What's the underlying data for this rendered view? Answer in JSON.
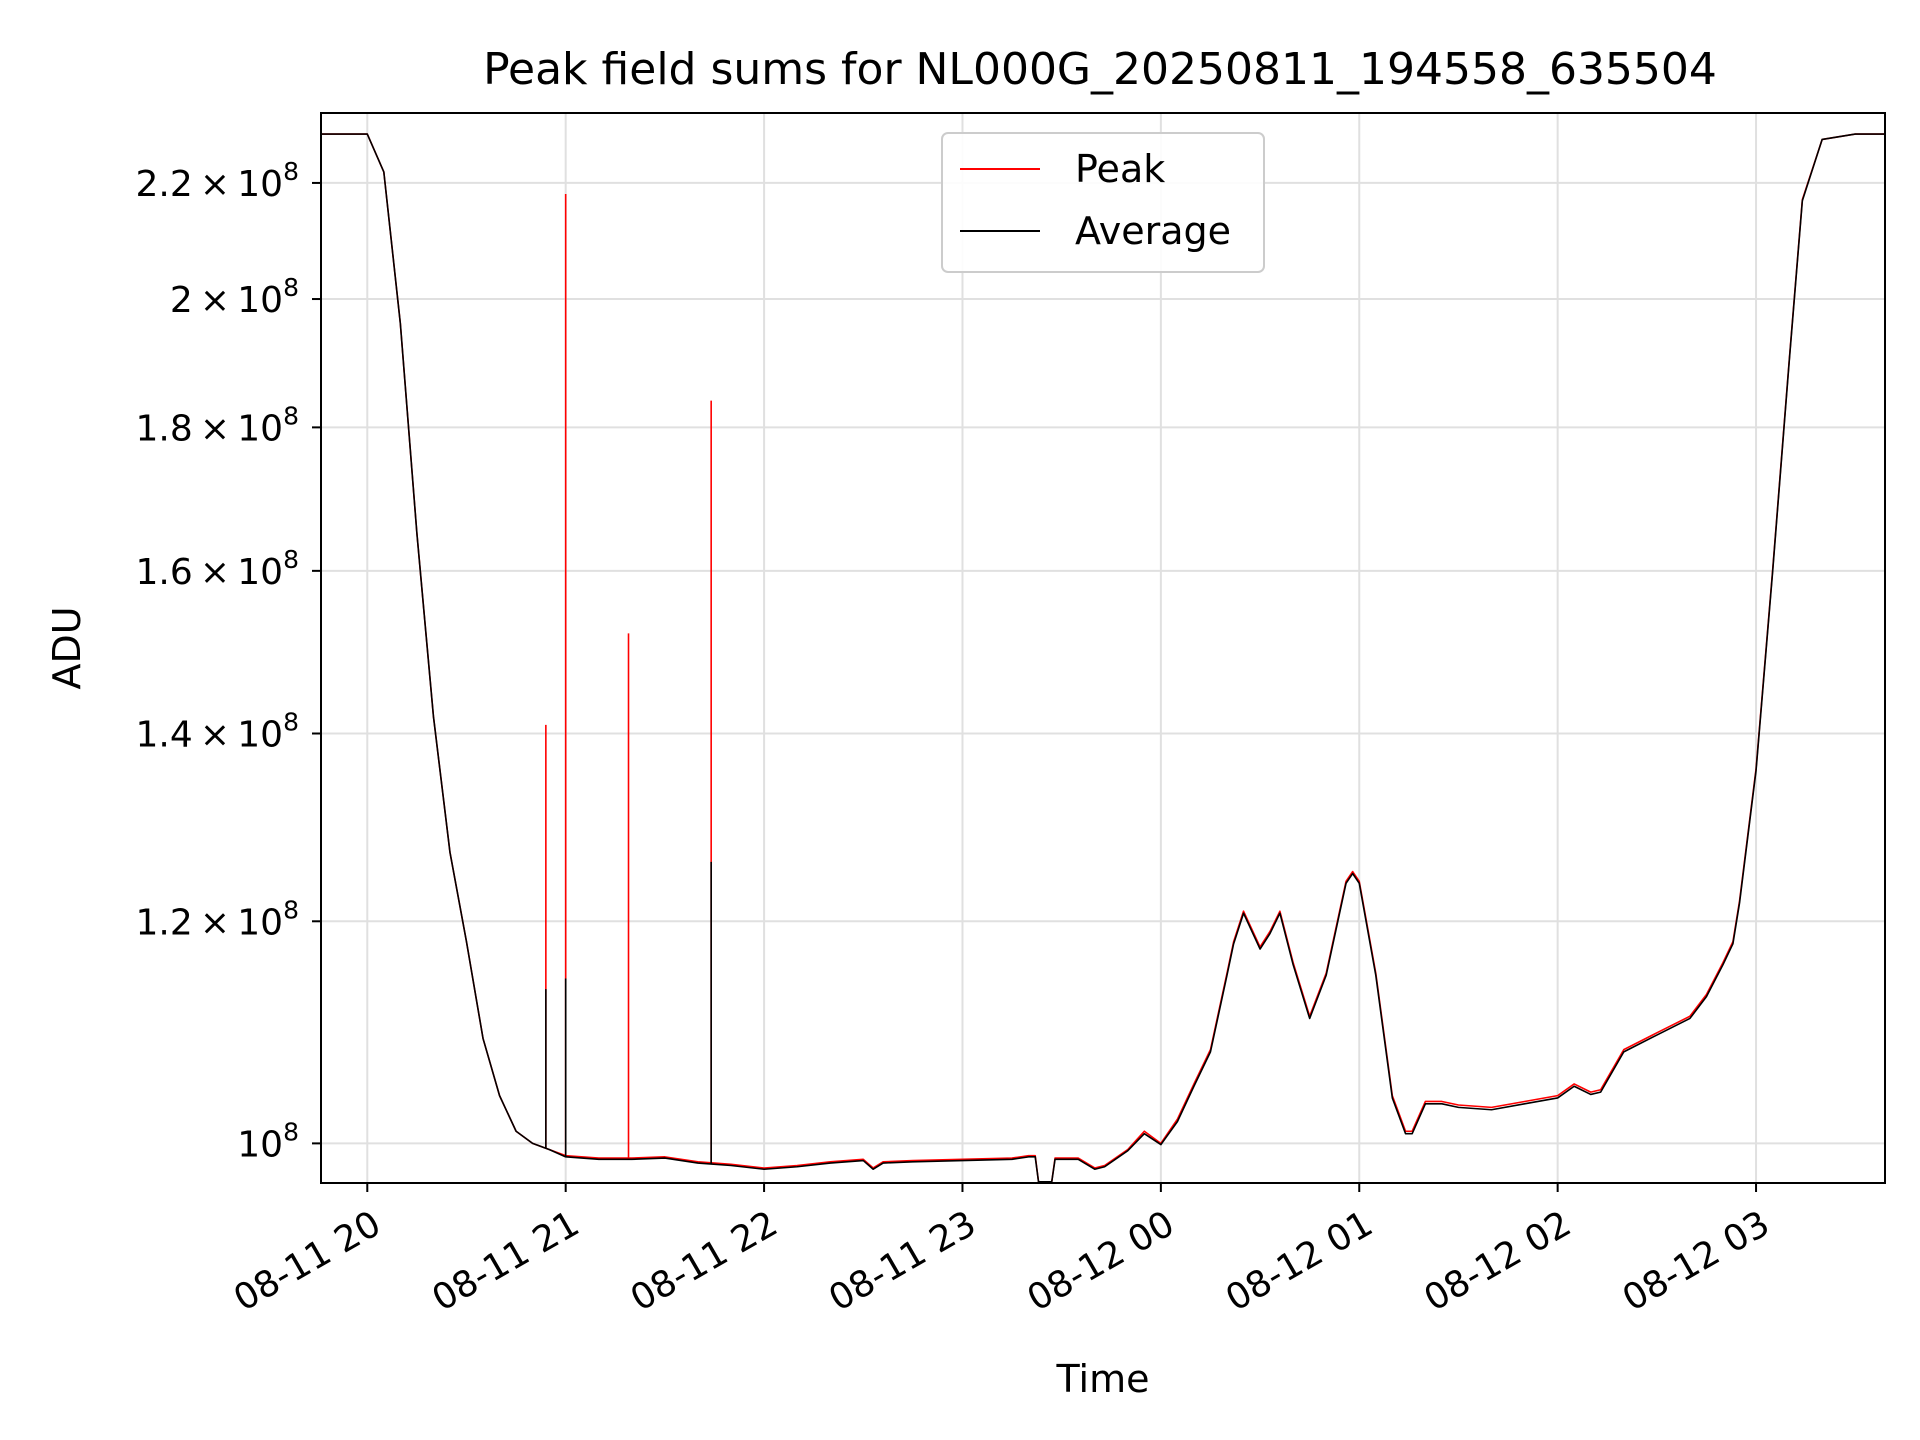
{
  "colors": {
    "peak": "#ff0000",
    "average": "#000000",
    "grid": "#e0e0e0",
    "axes": "#000000",
    "legend_border": "#cccccc"
  },
  "chart_data": {
    "type": "line",
    "title": "Peak field sums for NL000G_20250811_194558_635504",
    "xlabel": "Time",
    "ylabel": "ADU",
    "yscale": "log",
    "grid": true,
    "legend": {
      "placement": "upper center",
      "entries": [
        "Peak",
        "Average"
      ]
    },
    "x_ticks": [
      "08-11 20",
      "08-11 21",
      "08-11 22",
      "08-11 23",
      "08-12 00",
      "08-12 01",
      "08-12 02",
      "08-12 03"
    ],
    "y_ticks": [
      {
        "value": 100000000,
        "mantissa": "",
        "exponent": "8"
      },
      {
        "value": 120000000,
        "mantissa": "1.2",
        "exponent": "8"
      },
      {
        "value": 140000000,
        "mantissa": "1.4",
        "exponent": "8"
      },
      {
        "value": 160000000,
        "mantissa": "1.6",
        "exponent": "8"
      },
      {
        "value": 180000000,
        "mantissa": "1.8",
        "exponent": "8"
      },
      {
        "value": 200000000,
        "mantissa": "2",
        "exponent": "8"
      },
      {
        "value": 220000000,
        "mantissa": "2.2",
        "exponent": "8"
      }
    ],
    "xlim": [
      "2025-08-11 19:46",
      "2025-08-12 03:39"
    ],
    "ylim": [
      96800000,
      233000000
    ],
    "x": [
      "2025-08-11 19:46",
      "2025-08-11 19:50",
      "2025-08-11 19:55",
      "2025-08-11 20:00",
      "2025-08-11 20:05",
      "2025-08-11 20:10",
      "2025-08-11 20:15",
      "2025-08-11 20:20",
      "2025-08-11 20:25",
      "2025-08-11 20:30",
      "2025-08-11 20:35",
      "2025-08-11 20:40",
      "2025-08-11 20:45",
      "2025-08-11 20:50",
      "2025-08-11 20:55",
      "2025-08-11 21:00",
      "2025-08-11 21:10",
      "2025-08-11 21:20",
      "2025-08-11 21:30",
      "2025-08-11 21:40",
      "2025-08-11 21:50",
      "2025-08-11 22:00",
      "2025-08-11 22:10",
      "2025-08-11 22:20",
      "2025-08-11 22:30",
      "2025-08-11 22:33",
      "2025-08-11 22:36",
      "2025-08-11 22:45",
      "2025-08-11 23:00",
      "2025-08-11 23:15",
      "2025-08-11 23:20",
      "2025-08-11 23:22",
      "2025-08-11 23:23",
      "2025-08-11 23:27",
      "2025-08-11 23:28",
      "2025-08-11 23:35",
      "2025-08-11 23:40",
      "2025-08-11 23:43",
      "2025-08-11 23:50",
      "2025-08-11 23:55",
      "2025-08-12 00:00",
      "2025-08-12 00:05",
      "2025-08-12 00:10",
      "2025-08-12 00:15",
      "2025-08-12 00:20",
      "2025-08-12 00:22",
      "2025-08-12 00:25",
      "2025-08-12 00:30",
      "2025-08-12 00:33",
      "2025-08-12 00:36",
      "2025-08-12 00:40",
      "2025-08-12 00:45",
      "2025-08-12 00:50",
      "2025-08-12 00:56",
      "2025-08-12 00:58",
      "2025-08-12 01:00",
      "2025-08-12 01:05",
      "2025-08-12 01:10",
      "2025-08-12 01:14",
      "2025-08-12 01:16",
      "2025-08-12 01:20",
      "2025-08-12 01:25",
      "2025-08-12 01:30",
      "2025-08-12 01:40",
      "2025-08-12 01:50",
      "2025-08-12 02:00",
      "2025-08-12 02:05",
      "2025-08-12 02:10",
      "2025-08-12 02:13",
      "2025-08-12 02:20",
      "2025-08-12 02:30",
      "2025-08-12 02:40",
      "2025-08-12 02:45",
      "2025-08-12 02:50",
      "2025-08-12 02:53",
      "2025-08-12 02:55",
      "2025-08-12 03:00",
      "2025-08-12 03:05",
      "2025-08-12 03:10",
      "2025-08-12 03:14",
      "2025-08-12 03:20",
      "2025-08-12 03:30",
      "2025-08-12 03:39"
    ],
    "series": [
      {
        "name": "Peak",
        "values": [
          229000000,
          229000000,
          229000000,
          229000000,
          222000000,
          196000000,
          165000000,
          142000000,
          127000000,
          118000000,
          109000000,
          104000000,
          101000000,
          100000000,
          99500000,
          99000000,
          98800000,
          98800000,
          98900000,
          98500000,
          98300000,
          98000000,
          98200000,
          98500000,
          98700000,
          98000000,
          98500000,
          98600000,
          98700000,
          98800000,
          99000000,
          99000000,
          96900000,
          96900000,
          98800000,
          98800000,
          98000000,
          98200000,
          99500000,
          101000000,
          100000000,
          102000000,
          105000000,
          108000000,
          115000000,
          118000000,
          121000000,
          117500000,
          119000000,
          121000000,
          116000000,
          111000000,
          115000000,
          124000000,
          125000000,
          124000000,
          115000000,
          104000000,
          101000000,
          101000000,
          103500000,
          103500000,
          103200000,
          103000000,
          103500000,
          104000000,
          105000000,
          104300000,
          104500000,
          108000000,
          109500000,
          111000000,
          113000000,
          116000000,
          118000000,
          122000000,
          136000000,
          160000000,
          190000000,
          217000000,
          228000000,
          229000000,
          229000000
        ],
        "spikes": [
          {
            "x": "2025-08-11 20:54",
            "value": 141000000
          },
          {
            "x": "2025-08-11 21:00",
            "value": 218000000
          },
          {
            "x": "2025-08-11 21:19",
            "value": 152000000
          },
          {
            "x": "2025-08-11 21:44",
            "value": 184000000
          }
        ]
      },
      {
        "name": "Average",
        "values": [
          229000000,
          229000000,
          229000000,
          229000000,
          222000000,
          196000000,
          165000000,
          142000000,
          127000000,
          118000000,
          109000000,
          104000000,
          101000000,
          100000000,
          99500000,
          98900000,
          98700000,
          98700000,
          98800000,
          98400000,
          98200000,
          97900000,
          98100000,
          98400000,
          98600000,
          97900000,
          98400000,
          98500000,
          98600000,
          98700000,
          98900000,
          98900000,
          96900000,
          96900000,
          98700000,
          98700000,
          97900000,
          98100000,
          99400000,
          100800000,
          99900000,
          101800000,
          104800000,
          107800000,
          114800000,
          117800000,
          120800000,
          117300000,
          118800000,
          120800000,
          115800000,
          110800000,
          114800000,
          123800000,
          124800000,
          123800000,
          114800000,
          103800000,
          100800000,
          100800000,
          103300000,
          103300000,
          103000000,
          102800000,
          103300000,
          103800000,
          104800000,
          104100000,
          104300000,
          107800000,
          109300000,
          110800000,
          112800000,
          115800000,
          117800000,
          121800000,
          135800000,
          159800000,
          189800000,
          216800000,
          228000000,
          229000000,
          229000000
        ],
        "spikes": [
          {
            "x": "2025-08-11 20:54",
            "value": 113500000
          },
          {
            "x": "2025-08-11 21:00",
            "value": 114500000
          },
          {
            "x": "2025-08-11 21:44",
            "value": 126000000
          }
        ]
      }
    ]
  }
}
